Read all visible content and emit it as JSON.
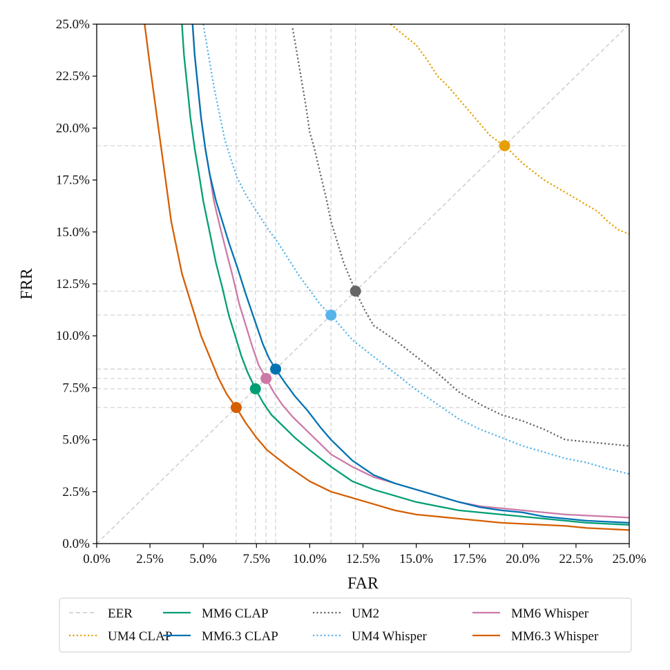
{
  "chart_data": {
    "type": "line",
    "xlabel": "FAR",
    "ylabel": "FRR",
    "xlim": [
      0,
      25
    ],
    "ylim": [
      0,
      25
    ],
    "x_ticks": [
      "0.0%",
      "2.5%",
      "5.0%",
      "7.5%",
      "10.0%",
      "12.5%",
      "15.0%",
      "17.5%",
      "20.0%",
      "22.5%",
      "25.0%"
    ],
    "y_ticks": [
      "0.0%",
      "2.5%",
      "5.0%",
      "7.5%",
      "10.0%",
      "12.5%",
      "15.0%",
      "17.5%",
      "20.0%",
      "22.5%",
      "25.0%"
    ],
    "legend_position": "bottom",
    "eer_line": {
      "name": "EER",
      "color": "#cccccc",
      "style": "dashed"
    },
    "series": [
      {
        "name": "UM2",
        "color": "#666666",
        "style": "dotted",
        "eer": 12.15,
        "points": [
          [
            9.2,
            24.8
          ],
          [
            9.5,
            23.0
          ],
          [
            9.8,
            21.2
          ],
          [
            10.0,
            19.8
          ],
          [
            10.2,
            19.1
          ],
          [
            10.5,
            17.8
          ],
          [
            10.8,
            16.5
          ],
          [
            11.0,
            15.5
          ],
          [
            11.3,
            14.5
          ],
          [
            11.6,
            13.5
          ],
          [
            12.15,
            12.15
          ],
          [
            12.6,
            11.2
          ],
          [
            13.0,
            10.5
          ],
          [
            14.0,
            9.8
          ],
          [
            15.0,
            9.0
          ],
          [
            16.0,
            8.2
          ],
          [
            17.0,
            7.3
          ],
          [
            18.0,
            6.7
          ],
          [
            19.0,
            6.2
          ],
          [
            20.0,
            5.9
          ],
          [
            21.0,
            5.5
          ],
          [
            22.0,
            5.0
          ],
          [
            23.0,
            4.9
          ],
          [
            24.0,
            4.8
          ],
          [
            25.0,
            4.7
          ]
        ]
      },
      {
        "name": "UM4 CLAP",
        "color": "#e69f00",
        "style": "dotted",
        "eer": 19.15,
        "points": [
          [
            13.8,
            25.0
          ],
          [
            14.5,
            24.4
          ],
          [
            15.0,
            24.0
          ],
          [
            15.5,
            23.3
          ],
          [
            16.0,
            22.5
          ],
          [
            16.5,
            22.0
          ],
          [
            17.0,
            21.4
          ],
          [
            17.5,
            20.8
          ],
          [
            18.0,
            20.2
          ],
          [
            18.5,
            19.6
          ],
          [
            19.15,
            19.15
          ],
          [
            19.5,
            18.8
          ],
          [
            20.0,
            18.3
          ],
          [
            20.5,
            17.9
          ],
          [
            21.0,
            17.5
          ],
          [
            21.5,
            17.2
          ],
          [
            22.0,
            16.9
          ],
          [
            22.5,
            16.6
          ],
          [
            23.0,
            16.3
          ],
          [
            23.5,
            16.0
          ],
          [
            24.0,
            15.5
          ],
          [
            24.5,
            15.1
          ],
          [
            25.0,
            14.9
          ]
        ]
      },
      {
        "name": "UM4 Whisper",
        "color": "#56b4e9",
        "style": "dotted",
        "eer": 11.0,
        "points": [
          [
            5.0,
            25.0
          ],
          [
            5.2,
            23.8
          ],
          [
            5.5,
            22.0
          ],
          [
            5.8,
            20.5
          ],
          [
            6.0,
            19.5
          ],
          [
            6.3,
            18.5
          ],
          [
            6.6,
            17.6
          ],
          [
            7.0,
            16.8
          ],
          [
            7.5,
            16.0
          ],
          [
            8.0,
            15.2
          ],
          [
            8.5,
            14.5
          ],
          [
            9.0,
            13.7
          ],
          [
            9.5,
            12.9
          ],
          [
            10.0,
            12.2
          ],
          [
            10.5,
            11.5
          ],
          [
            11.0,
            11.0
          ],
          [
            11.5,
            10.4
          ],
          [
            12.0,
            9.8
          ],
          [
            12.5,
            9.4
          ],
          [
            13.0,
            9.0
          ],
          [
            13.5,
            8.6
          ],
          [
            14.0,
            8.2
          ],
          [
            15.0,
            7.4
          ],
          [
            16.0,
            6.7
          ],
          [
            17.0,
            6.0
          ],
          [
            18.0,
            5.5
          ],
          [
            19.0,
            5.1
          ],
          [
            20.0,
            4.7
          ],
          [
            21.0,
            4.4
          ],
          [
            22.0,
            4.1
          ],
          [
            23.0,
            3.9
          ],
          [
            24.0,
            3.6
          ],
          [
            25.0,
            3.35
          ]
        ]
      },
      {
        "name": "MM6 CLAP",
        "color": "#009e73",
        "style": "solid",
        "eer": 7.45,
        "points": [
          [
            4.0,
            25.0
          ],
          [
            4.1,
            23.5
          ],
          [
            4.25,
            22.0
          ],
          [
            4.4,
            20.5
          ],
          [
            4.6,
            19.0
          ],
          [
            4.8,
            17.8
          ],
          [
            5.0,
            16.5
          ],
          [
            5.3,
            15.0
          ],
          [
            5.6,
            13.5
          ],
          [
            5.9,
            12.3
          ],
          [
            6.2,
            11.0
          ],
          [
            6.5,
            10.0
          ],
          [
            6.8,
            9.0
          ],
          [
            7.1,
            8.2
          ],
          [
            7.45,
            7.45
          ],
          [
            7.8,
            6.8
          ],
          [
            8.2,
            6.2
          ],
          [
            8.7,
            5.7
          ],
          [
            9.3,
            5.1
          ],
          [
            10.0,
            4.5
          ],
          [
            11.0,
            3.7
          ],
          [
            12.0,
            3.0
          ],
          [
            13.0,
            2.6
          ],
          [
            14.0,
            2.3
          ],
          [
            15.0,
            2.0
          ],
          [
            16.0,
            1.8
          ],
          [
            17.0,
            1.6
          ],
          [
            18.0,
            1.5
          ],
          [
            19.0,
            1.4
          ],
          [
            20.0,
            1.3
          ],
          [
            21.0,
            1.2
          ],
          [
            22.0,
            1.1
          ],
          [
            23.0,
            1.0
          ],
          [
            24.0,
            0.95
          ],
          [
            25.0,
            0.9
          ]
        ]
      },
      {
        "name": "MM6 Whisper",
        "color": "#cc79a7",
        "style": "solid",
        "eer": 7.95,
        "points": [
          [
            4.5,
            25.0
          ],
          [
            4.6,
            23.5
          ],
          [
            4.75,
            22.0
          ],
          [
            4.9,
            20.5
          ],
          [
            5.1,
            19.0
          ],
          [
            5.3,
            17.8
          ],
          [
            5.5,
            16.5
          ],
          [
            5.8,
            15.2
          ],
          [
            6.1,
            14.0
          ],
          [
            6.4,
            12.8
          ],
          [
            6.7,
            11.5
          ],
          [
            7.0,
            10.5
          ],
          [
            7.3,
            9.5
          ],
          [
            7.6,
            8.6
          ],
          [
            7.95,
            7.95
          ],
          [
            8.3,
            7.3
          ],
          [
            8.7,
            6.7
          ],
          [
            9.2,
            6.1
          ],
          [
            9.8,
            5.5
          ],
          [
            10.5,
            4.8
          ],
          [
            11.0,
            4.3
          ],
          [
            12.0,
            3.7
          ],
          [
            13.0,
            3.2
          ],
          [
            14.0,
            2.9
          ],
          [
            15.0,
            2.6
          ],
          [
            16.0,
            2.3
          ],
          [
            17.0,
            2.0
          ],
          [
            18.0,
            1.8
          ],
          [
            19.0,
            1.7
          ],
          [
            20.0,
            1.6
          ],
          [
            21.0,
            1.5
          ],
          [
            22.0,
            1.4
          ],
          [
            23.0,
            1.35
          ],
          [
            24.0,
            1.3
          ],
          [
            25.0,
            1.25
          ]
        ]
      },
      {
        "name": "MM6.3 CLAP",
        "color": "#0072b2",
        "style": "solid",
        "eer": 8.4,
        "points": [
          [
            4.5,
            25.0
          ],
          [
            4.6,
            23.5
          ],
          [
            4.75,
            22.0
          ],
          [
            4.9,
            20.5
          ],
          [
            5.1,
            19.0
          ],
          [
            5.3,
            17.8
          ],
          [
            5.6,
            16.5
          ],
          [
            5.9,
            15.5
          ],
          [
            6.2,
            14.5
          ],
          [
            6.6,
            13.3
          ],
          [
            7.0,
            12.0
          ],
          [
            7.4,
            10.8
          ],
          [
            7.8,
            9.6
          ],
          [
            8.1,
            8.9
          ],
          [
            8.4,
            8.4
          ],
          [
            8.8,
            7.8
          ],
          [
            9.3,
            7.1
          ],
          [
            9.9,
            6.4
          ],
          [
            10.5,
            5.6
          ],
          [
            11.0,
            5.0
          ],
          [
            12.0,
            4.0
          ],
          [
            13.0,
            3.3
          ],
          [
            14.0,
            2.9
          ],
          [
            15.0,
            2.6
          ],
          [
            16.0,
            2.3
          ],
          [
            17.0,
            2.0
          ],
          [
            18.0,
            1.75
          ],
          [
            19.0,
            1.6
          ],
          [
            20.0,
            1.5
          ],
          [
            21.0,
            1.3
          ],
          [
            22.0,
            1.2
          ],
          [
            23.0,
            1.1
          ],
          [
            24.0,
            1.05
          ],
          [
            25.0,
            1.0
          ]
        ]
      },
      {
        "name": "MM6.3 Whisper",
        "color": "#d55e00",
        "style": "solid",
        "eer": 6.55,
        "points": [
          [
            2.25,
            25.0
          ],
          [
            2.5,
            23.0
          ],
          [
            2.7,
            21.5
          ],
          [
            2.9,
            20.0
          ],
          [
            3.1,
            18.5
          ],
          [
            3.3,
            17.0
          ],
          [
            3.5,
            15.5
          ],
          [
            3.8,
            14.0
          ],
          [
            4.0,
            13.0
          ],
          [
            4.3,
            12.0
          ],
          [
            4.6,
            11.0
          ],
          [
            4.9,
            10.0
          ],
          [
            5.3,
            9.0
          ],
          [
            5.7,
            8.0
          ],
          [
            6.1,
            7.2
          ],
          [
            6.55,
            6.55
          ],
          [
            7.0,
            5.8
          ],
          [
            7.5,
            5.1
          ],
          [
            8.0,
            4.5
          ],
          [
            9.0,
            3.7
          ],
          [
            10.0,
            3.0
          ],
          [
            11.0,
            2.5
          ],
          [
            12.0,
            2.2
          ],
          [
            13.0,
            1.9
          ],
          [
            14.0,
            1.6
          ],
          [
            15.0,
            1.4
          ],
          [
            16.0,
            1.3
          ],
          [
            17.0,
            1.2
          ],
          [
            18.0,
            1.1
          ],
          [
            19.0,
            1.0
          ],
          [
            20.0,
            0.95
          ],
          [
            21.0,
            0.9
          ],
          [
            22.0,
            0.85
          ],
          [
            23.0,
            0.75
          ],
          [
            24.0,
            0.7
          ],
          [
            25.0,
            0.65
          ]
        ]
      }
    ],
    "legend_order": [
      "EER",
      "UM4 CLAP",
      "MM6 CLAP",
      "MM6.3 CLAP",
      "UM2",
      "UM4 Whisper",
      "MM6 Whisper",
      "MM6.3 Whisper"
    ]
  }
}
